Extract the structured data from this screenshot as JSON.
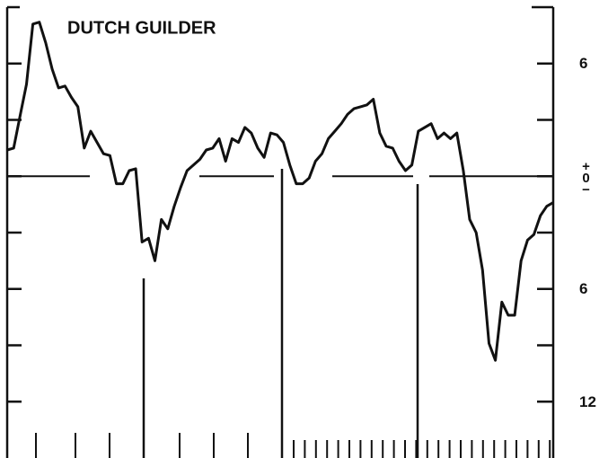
{
  "chart_data": {
    "type": "line",
    "title": "DUTCH GUILDER",
    "series": [
      {
        "color": "#111111",
        "values": [
          1.4,
          1.5,
          3.2,
          4.9,
          8.1,
          8.2,
          7.1,
          5.7,
          4.7,
          4.8,
          4.2,
          3.7,
          1.5,
          2.4,
          1.8,
          1.2,
          1.1,
          -0.4,
          -0.4,
          0.3,
          0.4,
          -3.5,
          -3.3,
          -4.5,
          -2.3,
          -2.8,
          -1.6,
          -0.6,
          0.3,
          0.6,
          0.9,
          1.4,
          1.5,
          2.0,
          0.8,
          2.0,
          1.8,
          2.6,
          2.3,
          1.5,
          1.0,
          2.3,
          2.2,
          1.8,
          0.6,
          -0.4,
          -0.4,
          -0.1,
          0.8,
          1.2,
          2.0,
          2.4,
          2.8,
          3.3,
          3.6,
          3.7,
          3.8,
          4.1,
          2.3,
          1.6,
          1.5,
          0.8,
          0.3,
          0.6,
          2.4,
          2.6,
          2.8,
          2.0,
          2.3,
          2.0,
          2.3,
          0.3,
          -2.3,
          -3.0,
          -5.0,
          -8.9,
          -9.8,
          -6.7,
          -7.4,
          -7.4,
          -4.5,
          -3.4,
          -3.1,
          -2.1,
          -1.6,
          -1.4
        ]
      }
    ],
    "ylim": [
      -15,
      9
    ],
    "yticks": [
      6,
      {
        "value": 0,
        "label": "+0−"
      },
      {
        "value": -6,
        "label": "6"
      },
      {
        "value": -12,
        "label": "12"
      }
    ],
    "yminor_ticks": [
      3,
      -3,
      -9
    ]
  }
}
